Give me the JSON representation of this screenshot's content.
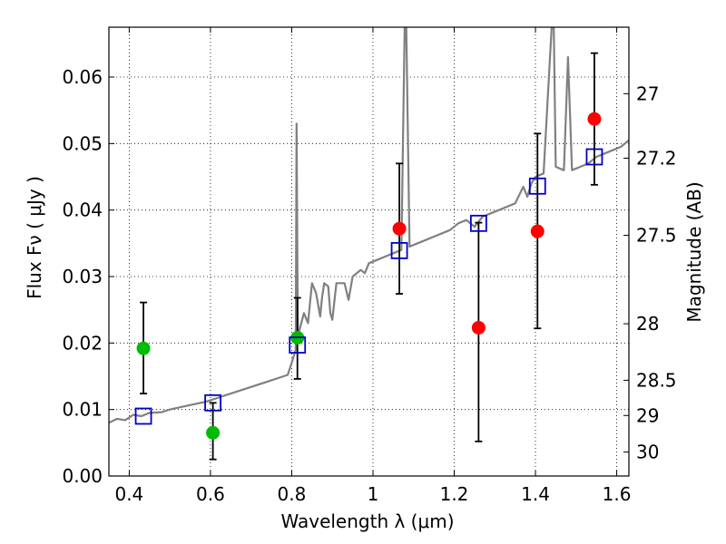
{
  "chart_data": {
    "type": "scatter",
    "xlabel": "Wavelength  λ (μm)",
    "ylabel": "Flux  Fν  ( μJy )",
    "ylabel_right": "Magnitude (AB)",
    "xlim": [
      0.35,
      1.63
    ],
    "ylim": [
      0.0,
      0.0675
    ],
    "grid": true,
    "x_ticks": [
      0.4,
      0.6,
      0.8,
      1.0,
      1.2,
      1.4,
      1.6
    ],
    "x_tick_labels": [
      "0.4",
      "0.6",
      "0.8",
      "1",
      "1.2",
      "1.4",
      "1.6"
    ],
    "y_ticks": [
      0.0,
      0.01,
      0.02,
      0.03,
      0.04,
      0.05,
      0.06
    ],
    "y_tick_labels": [
      "0.00",
      "0.01",
      "0.02",
      "0.03",
      "0.04",
      "0.05",
      "0.06"
    ],
    "right_axis_ticks": [
      {
        "label": "27",
        "flux": 0.0575
      },
      {
        "label": "27.2",
        "flux": 0.0478
      },
      {
        "label": "27.5",
        "flux": 0.0362
      },
      {
        "label": "28",
        "flux": 0.0229
      },
      {
        "label": "28.5",
        "flux": 0.0144
      },
      {
        "label": "29",
        "flux": 0.0091
      },
      {
        "label": "30",
        "flux": 0.0036
      }
    ],
    "series": [
      {
        "kind": "errorbar",
        "color": "#00bb00",
        "points": [
          {
            "x": 0.435,
            "y": 0.0192,
            "err_low": 0.0124,
            "err_high": 0.0261
          },
          {
            "x": 0.606,
            "y": 0.0065,
            "err_low": 0.0025,
            "err_high": 0.011
          },
          {
            "x": 0.814,
            "y": 0.0208,
            "err_low": 0.0146,
            "err_high": 0.0268
          }
        ]
      },
      {
        "kind": "errorbar",
        "color": "#ff0000",
        "points": [
          {
            "x": 1.065,
            "y": 0.0372,
            "err_low": 0.0274,
            "err_high": 0.047
          },
          {
            "x": 1.26,
            "y": 0.0223,
            "err_low": 0.0052,
            "err_high": 0.0381
          },
          {
            "x": 1.405,
            "y": 0.0368,
            "err_low": 0.0222,
            "err_high": 0.0515
          },
          {
            "x": 1.545,
            "y": 0.0537,
            "err_low": 0.0438,
            "err_high": 0.0636
          }
        ]
      },
      {
        "kind": "square",
        "color": "#0000cc",
        "points": [
          {
            "x": 0.435,
            "y": 0.009
          },
          {
            "x": 0.606,
            "y": 0.011
          },
          {
            "x": 0.814,
            "y": 0.0197
          },
          {
            "x": 1.065,
            "y": 0.0339
          },
          {
            "x": 1.26,
            "y": 0.038
          },
          {
            "x": 1.405,
            "y": 0.0436
          },
          {
            "x": 1.545,
            "y": 0.048
          }
        ]
      },
      {
        "kind": "spectrum",
        "color": "#808080",
        "points": [
          [
            0.35,
            0.008
          ],
          [
            0.37,
            0.0086
          ],
          [
            0.39,
            0.0084
          ],
          [
            0.41,
            0.0092
          ],
          [
            0.43,
            0.009
          ],
          [
            0.45,
            0.0095
          ],
          [
            0.48,
            0.0096
          ],
          [
            0.5,
            0.01
          ],
          [
            0.53,
            0.0104
          ],
          [
            0.56,
            0.0108
          ],
          [
            0.59,
            0.0112
          ],
          [
            0.62,
            0.0118
          ],
          [
            0.65,
            0.0124
          ],
          [
            0.68,
            0.013
          ],
          [
            0.71,
            0.0136
          ],
          [
            0.74,
            0.0142
          ],
          [
            0.77,
            0.0148
          ],
          [
            0.79,
            0.0152
          ],
          [
            0.8,
            0.017
          ],
          [
            0.81,
            0.019
          ],
          [
            0.812,
            0.053
          ],
          [
            0.815,
            0.021
          ],
          [
            0.83,
            0.0245
          ],
          [
            0.84,
            0.023
          ],
          [
            0.85,
            0.029
          ],
          [
            0.86,
            0.0275
          ],
          [
            0.87,
            0.024
          ],
          [
            0.875,
            0.027
          ],
          [
            0.88,
            0.029
          ],
          [
            0.89,
            0.0285
          ],
          [
            0.895,
            0.0245
          ],
          [
            0.9,
            0.0235
          ],
          [
            0.91,
            0.029
          ],
          [
            0.93,
            0.029
          ],
          [
            0.94,
            0.0265
          ],
          [
            0.95,
            0.03
          ],
          [
            0.97,
            0.031
          ],
          [
            0.98,
            0.0305
          ],
          [
            0.99,
            0.032
          ],
          [
            1.01,
            0.0325
          ],
          [
            1.03,
            0.033
          ],
          [
            1.05,
            0.0335
          ],
          [
            1.07,
            0.034
          ],
          [
            1.078,
            0.0675
          ],
          [
            1.082,
            0.0675
          ],
          [
            1.09,
            0.0345
          ],
          [
            1.11,
            0.035
          ],
          [
            1.13,
            0.0355
          ],
          [
            1.15,
            0.036
          ],
          [
            1.17,
            0.0365
          ],
          [
            1.19,
            0.037
          ],
          [
            1.21,
            0.038
          ],
          [
            1.23,
            0.0385
          ],
          [
            1.25,
            0.0375
          ],
          [
            1.27,
            0.039
          ],
          [
            1.29,
            0.0395
          ],
          [
            1.31,
            0.04
          ],
          [
            1.33,
            0.0405
          ],
          [
            1.35,
            0.041
          ],
          [
            1.37,
            0.0435
          ],
          [
            1.38,
            0.042
          ],
          [
            1.39,
            0.044
          ],
          [
            1.4,
            0.045
          ],
          [
            1.42,
            0.0455
          ],
          [
            1.44,
            0.0675
          ],
          [
            1.445,
            0.0675
          ],
          [
            1.45,
            0.0465
          ],
          [
            1.47,
            0.046
          ],
          [
            1.48,
            0.063
          ],
          [
            1.49,
            0.046
          ],
          [
            1.51,
            0.0465
          ],
          [
            1.53,
            0.047
          ],
          [
            1.55,
            0.048
          ],
          [
            1.57,
            0.0485
          ],
          [
            1.59,
            0.049
          ],
          [
            1.61,
            0.0495
          ],
          [
            1.63,
            0.0505
          ]
        ]
      }
    ]
  }
}
